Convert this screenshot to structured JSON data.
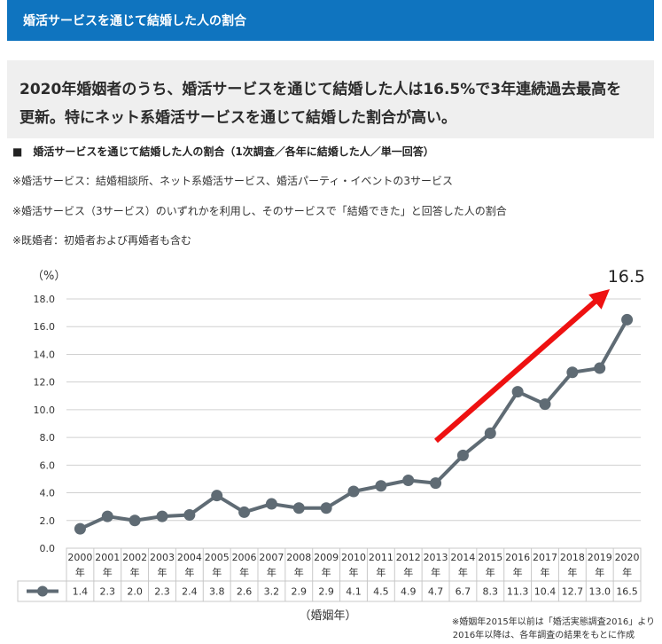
{
  "banner": {
    "title": "婚活サービスを通じて結婚した人の割合"
  },
  "headline": {
    "line1": "2020年婚姻者のうち、婚活サービスを通じて結婚した人は16.5%で3年連続過去最高を",
    "line2": "更新。特にネット系婚活サービスを通じて結婚した割合が高い。"
  },
  "subhead": "■　婚活サービスを通じて結婚した人の割合（1次調査／各年に結婚した人／単一回答）",
  "notes": [
    "※婚活サービス：結婚相談所、ネット系婚活サービス、婚活パーティ・イベントの3サービス",
    "※婚活サービス（3サービス）のいずれかを利用し、そのサービスで「結婚できた」と回答した人の割合",
    "※既婚者：初婚者および再婚者も含む"
  ],
  "source_note": {
    "line1": "※婚姻年2015年以前は「婚活実態調査2016」より",
    "line2": "2016年以降は、各年調査の結果をもとに作成"
  },
  "colors": {
    "banner": "#0f74bf",
    "series": "#5f6b74",
    "arrow": "#ee1111",
    "grid": "#d0d0d0"
  },
  "chart_data": {
    "type": "line",
    "ylabel": "（%）",
    "xlabel": "（婚姻年）",
    "ylim": [
      0,
      18
    ],
    "yticks": [
      "0.0",
      "2.0",
      "4.0",
      "6.0",
      "8.0",
      "10.0",
      "12.0",
      "14.0",
      "16.0",
      "18.0"
    ],
    "year_suffix": "年",
    "x": [
      "2000",
      "2001",
      "2002",
      "2003",
      "2004",
      "2005",
      "2006",
      "2007",
      "2008",
      "2009",
      "2010",
      "2011",
      "2012",
      "2013",
      "2014",
      "2015",
      "2016",
      "2017",
      "2018",
      "2019",
      "2020"
    ],
    "values": [
      1.4,
      2.3,
      2.0,
      2.3,
      2.4,
      3.8,
      2.6,
      3.2,
      2.9,
      2.9,
      4.1,
      4.5,
      4.9,
      4.7,
      6.7,
      8.3,
      11.3,
      10.4,
      12.7,
      13.0,
      16.5
    ],
    "value_labels": [
      "1.4",
      "2.3",
      "2.0",
      "2.3",
      "2.4",
      "3.8",
      "2.6",
      "3.2",
      "2.9",
      "2.9",
      "4.1",
      "4.5",
      "4.9",
      "4.7",
      "6.7",
      "8.3",
      "11.3",
      "10.4",
      "12.7",
      "13.0",
      "16.5"
    ],
    "annotation": "16.5",
    "grid": true
  }
}
